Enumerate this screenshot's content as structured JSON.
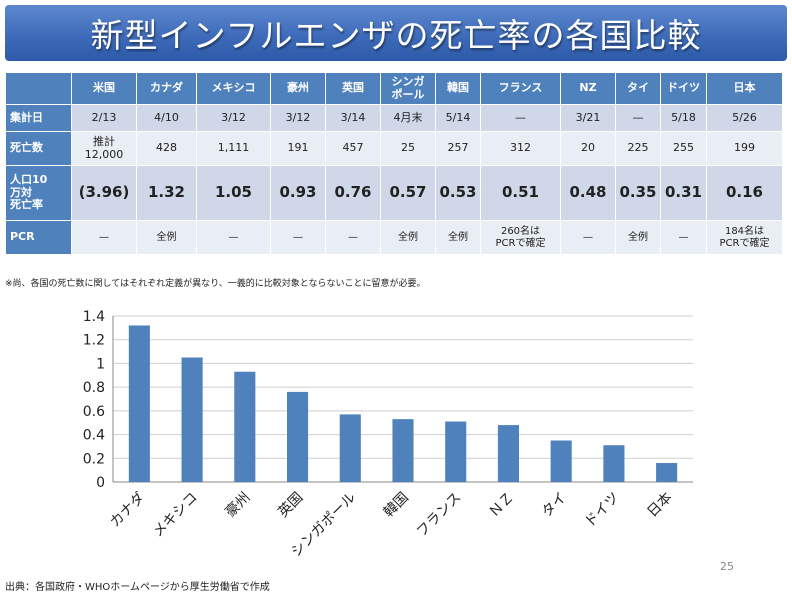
{
  "title": "新型インフルエンザの死亡率の各国比較",
  "table": {
    "countries": [
      "米国",
      "カナダ",
      "メキシコ",
      "豪州",
      "英国",
      "シンガ\nポール",
      "韓国",
      "フランス",
      "NZ",
      "タイ",
      "ドイツ",
      "日本"
    ],
    "rows": [
      {
        "label": "集計日",
        "values": [
          "2/13",
          "4/10",
          "3/12",
          "3/12",
          "3/14",
          "4月末",
          "5/14",
          "—",
          "3/21",
          "—",
          "5/18",
          "5/26"
        ]
      },
      {
        "label": "死亡数",
        "values": [
          "推計\n12,000",
          "428",
          "1,111",
          "191",
          "457",
          "25",
          "257",
          "312",
          "20",
          "225",
          "255",
          "199"
        ]
      },
      {
        "label": "人口10\n万対\n死亡率",
        "values": [
          "(3.96)",
          "1.32",
          "1.05",
          "0.93",
          "0.76",
          "0.57",
          "0.53",
          "0.51",
          "0.48",
          "0.35",
          "0.31",
          "0.16"
        ]
      },
      {
        "label": "PCR",
        "values": [
          "—",
          "全例",
          "—",
          "—",
          "—",
          "全例",
          "全例",
          "260名は\nPCRで確定",
          "—",
          "全例",
          "—",
          "184名は\nPCRで確定"
        ]
      }
    ]
  },
  "note": "※尚、各国の死亡数に関してはそれぞれ定義が異なり、一義的に比較対象とならないことに留意が必要。",
  "chart_data": {
    "type": "bar",
    "categories": [
      "カナダ",
      "メキシコ",
      "豪州",
      "英国",
      "シンガポール",
      "韓国",
      "フランス",
      "ＮＺ",
      "タイ",
      "ドイツ",
      "日本"
    ],
    "values": [
      1.32,
      1.05,
      0.93,
      0.76,
      0.57,
      0.53,
      0.51,
      0.48,
      0.35,
      0.31,
      0.16
    ],
    "yticks": [
      "0",
      "0.2",
      "0.4",
      "0.6",
      "0.8",
      "1",
      "1.2",
      "1.4"
    ],
    "ylim": [
      0,
      1.4
    ],
    "grid": true,
    "bar_color": "#4f81bd",
    "title": "",
    "xlabel": "",
    "ylabel": ""
  },
  "page_number": "25",
  "source": "出典：各国政府・WHOホームページから厚生労働省で作成"
}
